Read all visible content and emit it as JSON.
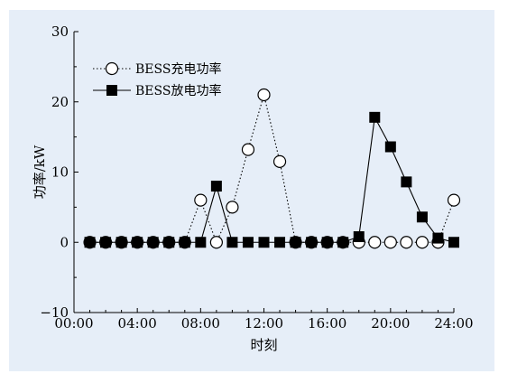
{
  "chart_data": {
    "type": "line",
    "xlabel": "时刻",
    "ylabel": "功率/kW",
    "x_tick_labels": [
      "00:00",
      "04:00",
      "08:00",
      "12:00",
      "16:00",
      "20:00",
      "24:00"
    ],
    "x_tick_hours": [
      0,
      4,
      8,
      12,
      16,
      20,
      24
    ],
    "xlim": [
      0,
      24
    ],
    "y_tick_values": [
      -10,
      0,
      10,
      20,
      30
    ],
    "y_tick_labels": [
      "−10",
      "0",
      "10",
      "20",
      "30"
    ],
    "ylim": [
      -10,
      30
    ],
    "grid": false,
    "legend_position": "top-left",
    "x": [
      1,
      2,
      3,
      4,
      5,
      6,
      7,
      8,
      9,
      10,
      11,
      12,
      13,
      14,
      15,
      16,
      17,
      18,
      19,
      20,
      21,
      22,
      23,
      24
    ],
    "series": [
      {
        "name": "BESS充电功率",
        "marker": "open-circle",
        "line": "dotted",
        "color": "#000000",
        "values": [
          0,
          0,
          0,
          0,
          0,
          0,
          0,
          6,
          0,
          5,
          13.2,
          21,
          11.5,
          0,
          0,
          0,
          0,
          0,
          0,
          0,
          0,
          0,
          0,
          6
        ]
      },
      {
        "name": "BESS放电功率",
        "marker": "filled-square",
        "line": "solid",
        "color": "#000000",
        "values": [
          0,
          0,
          0,
          0,
          0,
          0,
          0,
          0,
          8,
          0,
          0,
          0,
          0,
          0,
          0,
          0,
          0,
          0.8,
          17.8,
          13.6,
          8.6,
          3.6,
          0.6,
          0
        ]
      }
    ]
  }
}
